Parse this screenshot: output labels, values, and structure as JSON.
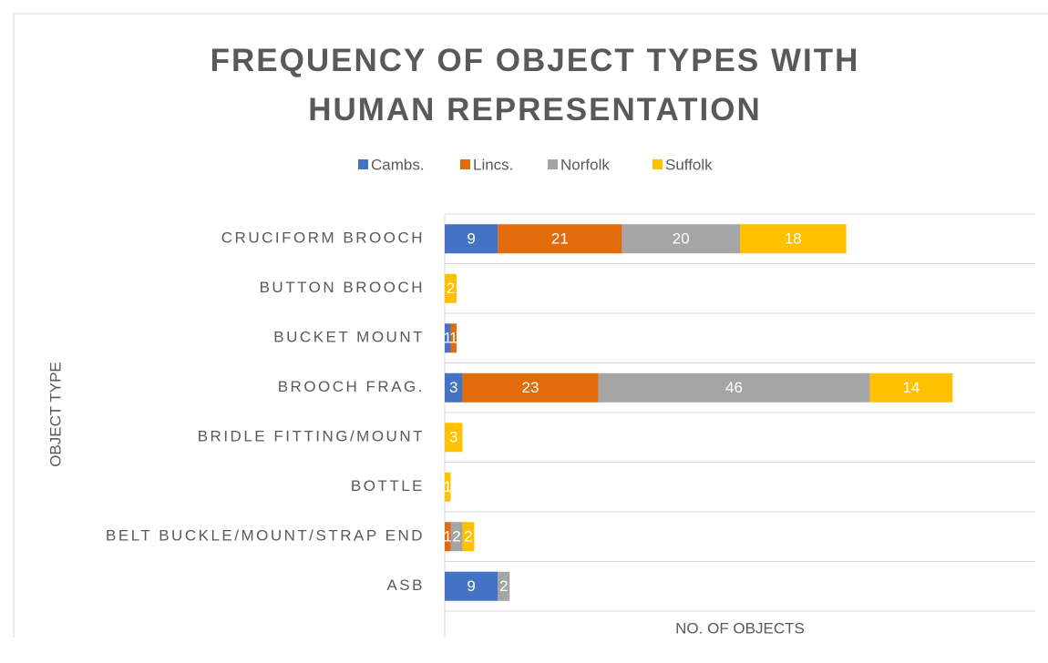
{
  "chart_data": {
    "type": "stacked_barh",
    "title": "FREQUENCY OF OBJECT TYPES WITH HUMAN REPRESENTATION",
    "x_label": "NO. OF OBJECTS",
    "y_label": "OBJECT TYPE",
    "categories": [
      "CRUCIFORM BROOCH",
      "BUTTON BROOCH",
      "BUCKET MOUNT",
      "BROOCH FRAG.",
      "BRIDLE FITTING/MOUNT",
      "BOTTLE",
      "BELT BUCKLE/MOUNT/STRAP END",
      "ASB"
    ],
    "series": [
      {
        "name": "Cambs.",
        "color": "#4472c4",
        "values": [
          9,
          null,
          1,
          3,
          null,
          null,
          null,
          9
        ]
      },
      {
        "name": "Lincs.",
        "color": "#e36c0a",
        "values": [
          21,
          null,
          1,
          23,
          null,
          null,
          1,
          null
        ]
      },
      {
        "name": "Norfolk",
        "color": "#a5a5a5",
        "values": [
          20,
          null,
          null,
          46,
          null,
          null,
          2,
          2
        ]
      },
      {
        "name": "Suffolk",
        "color": "#ffc000",
        "values": [
          18,
          2,
          null,
          14,
          3,
          1,
          2,
          null
        ]
      }
    ],
    "xlim": [
      0,
      100
    ],
    "legend": "top"
  }
}
